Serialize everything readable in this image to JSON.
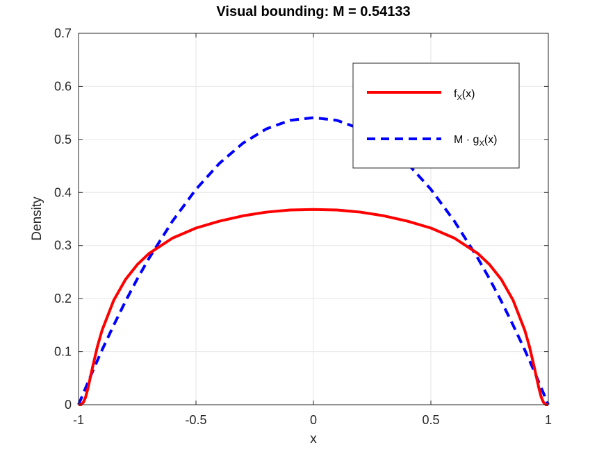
{
  "chart_data": {
    "type": "line",
    "title": "Visual bounding: M = 0.54133",
    "xlabel": "x",
    "ylabel": "Density",
    "xlim": [
      -1,
      1
    ],
    "ylim": [
      0,
      0.7
    ],
    "xticks": [
      -1,
      -0.5,
      0,
      0.5,
      1
    ],
    "xtick_labels": [
      "-1",
      "-0.5",
      "0",
      "0.5",
      "1"
    ],
    "yticks": [
      0,
      0.1,
      0.2,
      0.3,
      0.4,
      0.5,
      0.6,
      0.7
    ],
    "ytick_labels": [
      "0",
      "0.1",
      "0.2",
      "0.3",
      "0.4",
      "0.5",
      "0.6",
      "0.7"
    ],
    "grid": true,
    "legend_position": "top-right",
    "series": [
      {
        "name": "f_X(x)",
        "legend_main": "f",
        "legend_sub": "X",
        "legend_tail": "(x)",
        "color": "#ff0000",
        "style": "solid",
        "x": [
          -1,
          -0.995,
          -0.99,
          -0.98,
          -0.97,
          -0.96,
          -0.95,
          -0.94,
          -0.92,
          -0.9,
          -0.85,
          -0.8,
          -0.75,
          -0.7,
          -0.6,
          -0.5,
          -0.4,
          -0.3,
          -0.2,
          -0.1,
          0,
          0.1,
          0.2,
          0.3,
          0.4,
          0.5,
          0.6,
          0.7,
          0.75,
          0.8,
          0.85,
          0.9,
          0.92,
          0.94,
          0.95,
          0.96,
          0.97,
          0.98,
          0.99,
          0.995,
          1
        ],
        "y": [
          0,
          0.0,
          0.0,
          0.004,
          0.014,
          0.031,
          0.051,
          0.071,
          0.109,
          0.14,
          0.197,
          0.236,
          0.264,
          0.285,
          0.314,
          0.333,
          0.346,
          0.356,
          0.363,
          0.367,
          0.368,
          0.367,
          0.363,
          0.356,
          0.346,
          0.333,
          0.314,
          0.285,
          0.264,
          0.236,
          0.197,
          0.14,
          0.109,
          0.071,
          0.051,
          0.031,
          0.014,
          0.004,
          0.0,
          0.0,
          0
        ]
      },
      {
        "name": "M · g_X(x)",
        "legend_main": "M · g",
        "legend_sub": "X",
        "legend_tail": "(x)",
        "color": "#0000ff",
        "style": "dashed",
        "x": [
          -1,
          -0.98,
          -0.96,
          -0.94,
          -0.92,
          -0.9,
          -0.85,
          -0.8,
          -0.75,
          -0.7,
          -0.6,
          -0.5,
          -0.4,
          -0.3,
          -0.2,
          -0.1,
          0,
          0.1,
          0.2,
          0.3,
          0.4,
          0.5,
          0.6,
          0.7,
          0.75,
          0.8,
          0.85,
          0.9,
          0.92,
          0.94,
          0.96,
          0.98,
          1
        ],
        "y": [
          0,
          0.021,
          0.042,
          0.063,
          0.083,
          0.103,
          0.15,
          0.195,
          0.237,
          0.276,
          0.346,
          0.406,
          0.455,
          0.493,
          0.52,
          0.536,
          0.541,
          0.536,
          0.52,
          0.493,
          0.455,
          0.406,
          0.346,
          0.276,
          0.237,
          0.195,
          0.15,
          0.103,
          0.083,
          0.063,
          0.042,
          0.021,
          0
        ]
      }
    ]
  }
}
